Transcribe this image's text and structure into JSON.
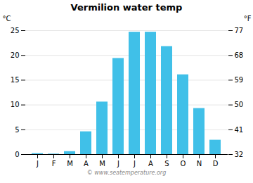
{
  "chart_data": {
    "type": "bar",
    "title": "Vermilion water temp",
    "categories": [
      "J",
      "F",
      "M",
      "A",
      "M",
      "J",
      "J",
      "A",
      "S",
      "O",
      "N",
      "D"
    ],
    "values": [
      0.2,
      0.1,
      0.6,
      4.6,
      10.6,
      19.4,
      24.7,
      24.7,
      21.8,
      16.1,
      9.3,
      2.9
    ],
    "color": "#40c0e8",
    "ylabel": "°C",
    "y2label": "°F",
    "ylim": [
      0,
      25
    ],
    "yticks": [
      0,
      5,
      10,
      15,
      20,
      25
    ],
    "y2lim": [
      32,
      77
    ],
    "y2ticks": [
      32,
      41,
      50,
      59,
      68,
      77
    ],
    "grid": true,
    "annotations": [
      "© www.seatemperature.org"
    ]
  }
}
